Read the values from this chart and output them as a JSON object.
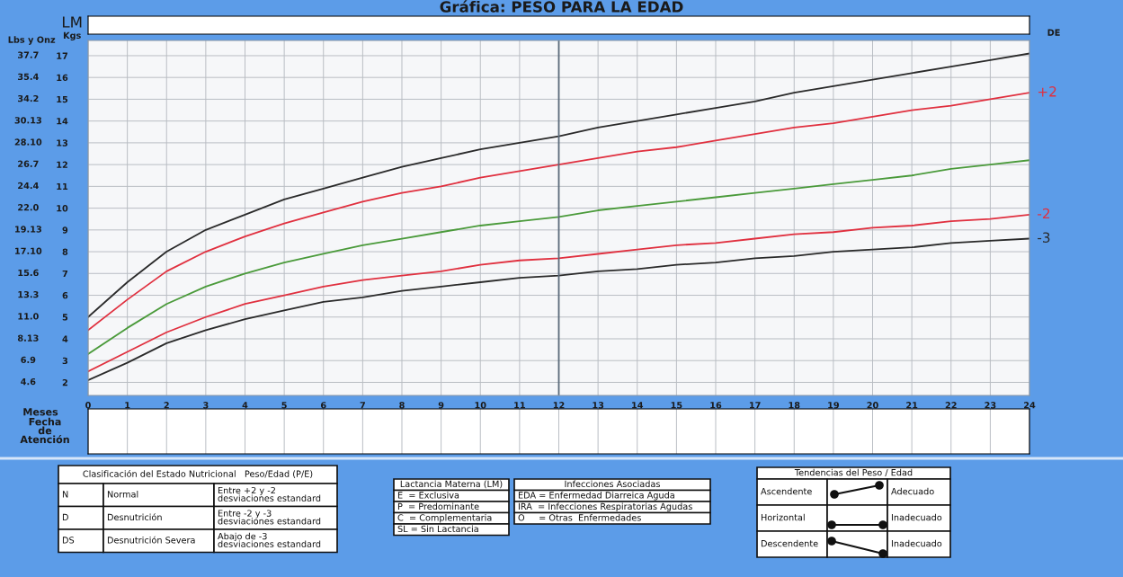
{
  "chart_data": {
    "type": "line",
    "title": "Gráfica: PESO PARA LA EDAD",
    "xlabel": "Meses",
    "ylabel": "Kgs",
    "x": [
      0,
      1,
      2,
      3,
      4,
      5,
      6,
      7,
      8,
      9,
      10,
      11,
      12,
      13,
      14,
      15,
      16,
      17,
      18,
      19,
      20,
      21,
      22,
      23,
      24
    ],
    "series": [
      {
        "color": "#2a2a2a",
        "values": [
          5.0,
          6.6,
          8.0,
          9.0,
          9.7,
          10.4,
          10.9,
          11.4,
          11.9,
          12.3,
          12.7,
          13.0,
          13.3,
          13.7,
          14.0,
          14.3,
          14.6,
          14.9,
          15.3,
          15.6,
          15.9,
          16.2,
          16.5,
          16.8,
          17.1
        ]
      },
      {
        "name": "+2",
        "color": "#e0303f",
        "values": [
          4.4,
          5.8,
          7.1,
          8.0,
          8.7,
          9.3,
          9.8,
          10.3,
          10.7,
          11.0,
          11.4,
          11.7,
          12.0,
          12.3,
          12.6,
          12.8,
          13.1,
          13.4,
          13.7,
          13.9,
          14.2,
          14.5,
          14.7,
          15.0,
          15.3
        ]
      },
      {
        "color": "#4a9a3a",
        "values": [
          3.3,
          4.5,
          5.6,
          6.4,
          7.0,
          7.5,
          7.9,
          8.3,
          8.6,
          8.9,
          9.2,
          9.4,
          9.6,
          9.9,
          10.1,
          10.3,
          10.5,
          10.7,
          10.9,
          11.1,
          11.3,
          11.5,
          11.8,
          12.0,
          12.2
        ]
      },
      {
        "name": "-2",
        "color": "#e0303f",
        "values": [
          2.5,
          3.4,
          4.3,
          5.0,
          5.6,
          6.0,
          6.4,
          6.7,
          6.9,
          7.1,
          7.4,
          7.6,
          7.7,
          7.9,
          8.1,
          8.3,
          8.4,
          8.6,
          8.8,
          8.9,
          9.1,
          9.2,
          9.4,
          9.5,
          9.7
        ]
      },
      {
        "name": "-3",
        "color": "#2a2a2a",
        "values": [
          2.1,
          2.9,
          3.8,
          4.4,
          4.9,
          5.3,
          5.7,
          5.9,
          6.2,
          6.4,
          6.6,
          6.8,
          6.9,
          7.1,
          7.2,
          7.4,
          7.5,
          7.7,
          7.8,
          8.0,
          8.1,
          8.2,
          8.4,
          8.5,
          8.6
        ]
      }
    ],
    "xlim": [
      0,
      24
    ],
    "xticks": [
      0,
      1,
      2,
      3,
      4,
      5,
      6,
      7,
      8,
      9,
      10,
      11,
      12,
      13,
      14,
      15,
      16,
      17,
      18,
      19,
      20,
      21,
      22,
      23,
      24
    ],
    "ylim": [
      1.4,
      17.7
    ],
    "yticks": [
      2,
      3,
      4,
      5,
      6,
      7,
      8,
      9,
      10,
      11,
      12,
      13,
      14,
      15,
      16,
      17
    ],
    "ref_lines": [
      {
        "axis": "x",
        "value": 12,
        "color": "#5a6a7a"
      }
    ],
    "grid": true,
    "legend": false,
    "marker": "none",
    "line_style": "solid",
    "annotations": [
      "LM",
      "DE",
      "Fecha de Atención",
      "Clasificación del Estado Nutricional   Peso/Edad (P/E)",
      "N",
      "Normal",
      "Entre +2 y -2\ndesviaciones estandard",
      "D",
      "Desnutrición",
      "Entre -2 y -3\ndesviaciones estandard",
      "DS",
      "Desnutrición Severa",
      "Abajo de -3\ndesviaciones estandard",
      "Lactancia Materna (LM)",
      "E  = Exclusiva",
      "P  = Predominante",
      "C  = Complementaria",
      "SL = Sin Lactancia",
      "Infecciones Asociadas",
      "EDA = Enfermedad Diarreica Aguda",
      "IRA  = Infecciones Respiratorias Agudas",
      "O     = Otras  Enfermedades",
      "Tendencias del Peso / Edad",
      "Ascendente",
      "Adecuado",
      "Horizontal",
      "Inadecuado",
      "Descendente",
      "Inadecuado",
      "Lbs y Onz",
      "4.6",
      "6.9",
      "8.13",
      "11.0",
      "13.3",
      "15.6",
      "17.10",
      "19.13",
      "22.0",
      "24.4",
      "26.7",
      "28.10",
      "30.13",
      "34.2",
      "35.4",
      "37.7"
    ]
  }
}
